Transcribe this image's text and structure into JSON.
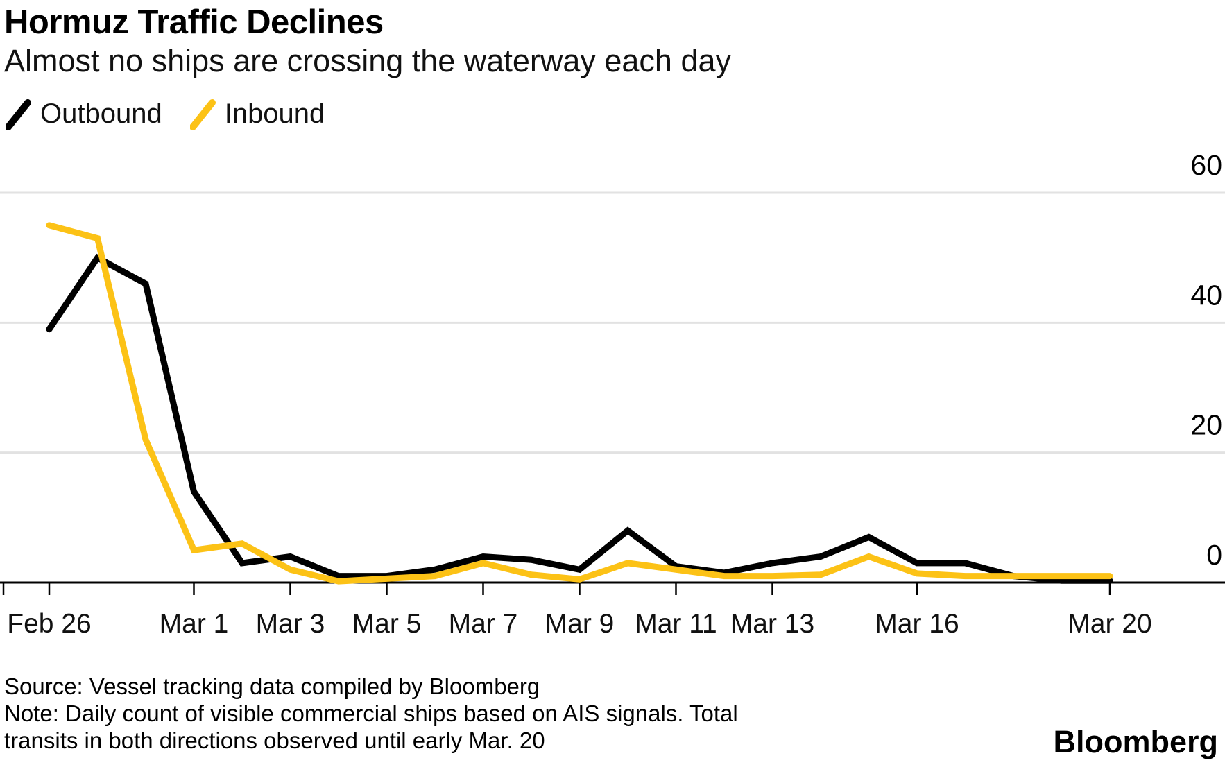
{
  "title": "Hormuz Traffic Declines",
  "subtitle": "Almost no ships are crossing the waterway each day",
  "legend": [
    {
      "label": "Outbound",
      "color": "#000000",
      "icon": "diagonal-line-swatch"
    },
    {
      "label": "Inbound",
      "color": "#FCC216",
      "icon": "diagonal-line-swatch"
    }
  ],
  "footer": {
    "source": "Source: Vessel tracking data compiled by Bloomberg",
    "note_line1": "Note: Daily count of visible commercial ships based on AIS signals. Total",
    "note_line2": "transits in both directions observed until early Mar. 20",
    "brand": "Bloomberg"
  },
  "colors": {
    "background": "#FFFFFF",
    "outbound": "#000000",
    "inbound": "#FCC216",
    "gridline": "#E2E2E2",
    "axis": "#000000",
    "text": "#000000"
  },
  "chart_data": {
    "type": "line",
    "title": "Hormuz Traffic Declines",
    "subtitle": "Almost no ships are crossing the waterway each day",
    "xlabel": "",
    "ylabel": "",
    "x": [
      "Feb 26",
      "Feb 27",
      "Feb 28",
      "Mar 1",
      "Mar 2",
      "Mar 3",
      "Mar 4",
      "Mar 5",
      "Mar 6",
      "Mar 7",
      "Mar 8",
      "Mar 9",
      "Mar 10",
      "Mar 11",
      "Mar 12",
      "Mar 13",
      "Mar 14",
      "Mar 15",
      "Mar 16",
      "Mar 17",
      "Mar 18",
      "Mar 19",
      "Mar 20"
    ],
    "series": [
      {
        "name": "Outbound",
        "color": "#000000",
        "values": [
          39,
          50,
          46,
          14,
          3,
          4,
          1,
          1,
          2,
          4,
          3.5,
          2,
          8,
          2.5,
          1.5,
          3,
          4,
          7,
          3,
          3,
          1,
          0.3,
          0.3
        ]
      },
      {
        "name": "Inbound",
        "color": "#FCC216",
        "values": [
          55,
          53,
          22,
          5,
          6,
          2,
          0.2,
          0.6,
          1,
          3,
          1.2,
          0.5,
          3,
          2,
          1,
          1,
          1.2,
          4,
          1.4,
          1,
          1,
          1,
          1
        ]
      }
    ],
    "xticks": [
      {
        "label": "Feb 26",
        "index": 0
      },
      {
        "label": "Mar 1",
        "index": 3
      },
      {
        "label": "Mar 3",
        "index": 5
      },
      {
        "label": "Mar 5",
        "index": 7
      },
      {
        "label": "Mar 7",
        "index": 9
      },
      {
        "label": "Mar 9",
        "index": 11
      },
      {
        "label": "Mar 11",
        "index": 13
      },
      {
        "label": "Mar 13",
        "index": 15
      },
      {
        "label": "Mar 16",
        "index": 18
      },
      {
        "label": "Mar 20",
        "index": 22
      }
    ],
    "yticks": [
      0,
      20,
      40,
      60
    ],
    "ylim": [
      0,
      60
    ],
    "grid": "horizontal",
    "ytick_side": "right",
    "legend_position": "top-left"
  }
}
